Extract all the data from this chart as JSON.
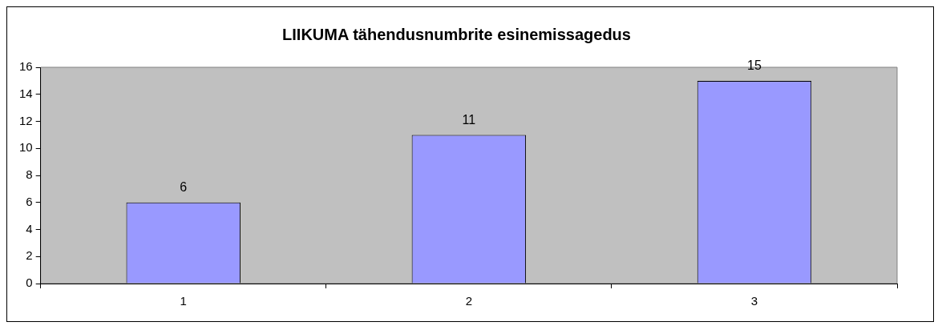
{
  "chart_data": {
    "type": "bar",
    "title": "LIIKUMA tähendusnumbrite esinemissagedus",
    "categories": [
      "1",
      "2",
      "3"
    ],
    "values": [
      6,
      11,
      15
    ],
    "color": "#9999ff",
    "ylim": [
      0,
      16
    ],
    "yticks": [
      0,
      2,
      4,
      6,
      8,
      10,
      12,
      14,
      16
    ],
    "grid": false,
    "data_labels": true
  }
}
